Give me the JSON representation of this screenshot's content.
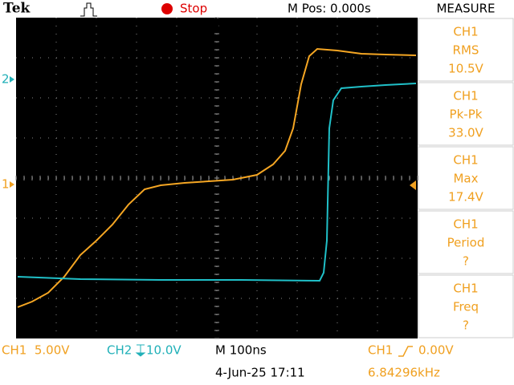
{
  "header": {
    "brand": "Tek",
    "status": "Stop",
    "position": "M Pos: 0.000s",
    "panel_title": "MEASURE"
  },
  "measurements": [
    {
      "channel": "CH1",
      "name": "RMS",
      "value": "10.5V"
    },
    {
      "channel": "CH1",
      "name": "Pk-Pk",
      "value": "33.0V"
    },
    {
      "channel": "CH1",
      "name": "Max",
      "value": "17.4V"
    },
    {
      "channel": "CH1",
      "name": "Period",
      "value": "?"
    },
    {
      "channel": "CH1",
      "name": "Freq",
      "value": "?"
    }
  ],
  "markers": {
    "ch2": "2",
    "ch1": "1"
  },
  "footer": {
    "ch1_scale": "CH1  5.00V",
    "ch2_label": "CH2",
    "ch2_scale": "10.0V",
    "timebase": "M 100ns",
    "trigger_source": "CH1",
    "trigger_level": "0.00V",
    "datetime": "4-Jun-25 17:11",
    "frequency": "6.84296kHz"
  }
}
